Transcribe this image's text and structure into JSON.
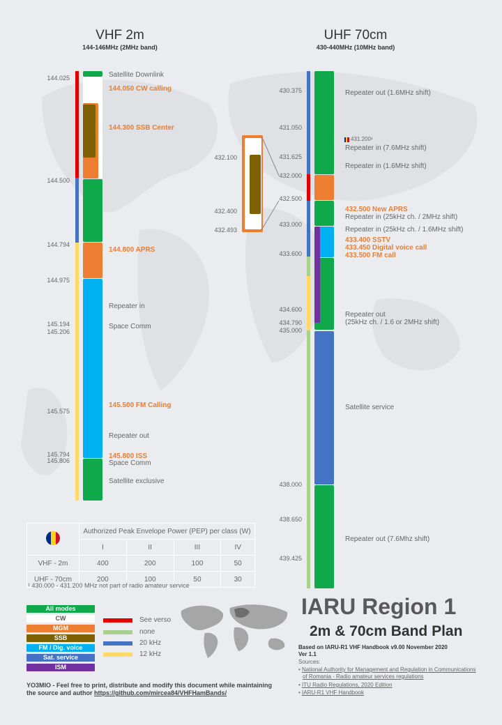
{
  "colors": {
    "all_modes": "#0fa84b",
    "cw": "#ffffff",
    "mgm": "#ed7d31",
    "ssb": "#7f6000",
    "fm_dig": "#00b0f0",
    "sat": "#4472c4",
    "ism": "#7030a0",
    "see_verso": "#e00000",
    "none": "#a9d18e",
    "khz20": "#4472c4",
    "khz12": "#ffd966"
  },
  "vhf": {
    "title": "VHF 2m",
    "subtitle": "144-146MHz (2MHz band)",
    "freqs": [
      "144.025",
      "144.500",
      "144.794",
      "144.975",
      "145.194",
      "145.206",
      "145.575",
      "145.794",
      "145.806"
    ],
    "labels": {
      "sat_down": "Satellite Downlink",
      "cw_call": "144.050 CW calling",
      "ssb_center": "144.300 SSB Center",
      "aprs": "144.800 APRS",
      "rep_in": "Repeater in",
      "space1": "Space Comm",
      "fm_call": "145.500 FM Calling",
      "rep_out": "Repeater out",
      "iss": "145.800 ISS",
      "space2": "Space Comm",
      "sat_excl": "Satellite exclusive"
    }
  },
  "uhf": {
    "title": "UHF 70cm",
    "subtitle": "430-440MHz (10MHz band)",
    "freqs": [
      "430.375",
      "431.050",
      "431.625",
      "432.000",
      "432.500",
      "433.000",
      "433.600",
      "434.600",
      "434.790",
      "435.000",
      "438.000",
      "438.650",
      "439.425"
    ],
    "zoom_freqs": [
      "432.100",
      "432.400",
      "432.493"
    ],
    "labels": {
      "rep_out16": "Repeater out (1.6MHz shift)",
      "f4312": "431.200¹",
      "rep_in76": "Repeater in (7.6MHz shift)",
      "rep_in16": "Repeater in (1.6MHz shift)",
      "new_aprs": "432.500 New APRS",
      "rep_in25_2": "Repeater in (25kHz ch. / 2MHz shift)",
      "rep_in25_16": "Repeater in (25kHz ch. / 1.6MHz shift)",
      "sstv": "433.400 SSTV",
      "dvc": "433.450 Digital voice call",
      "fmcall": "433.500 FM call",
      "rep_out25": "Repeater out",
      "rep_out25b": "(25kHz ch. / 1.6 or 2MHz shift)",
      "sat_service": "Satellite service",
      "rep_out76": "Repeater out (7.6Mhz shift)"
    }
  },
  "pep_table": {
    "header": "Authorized Peak Envelope Power (PEP) per class (W)",
    "classes": [
      "I",
      "II",
      "III",
      "IV"
    ],
    "rows": [
      {
        "band": "VHF - 2m",
        "values": [
          "400",
          "200",
          "100",
          "50"
        ]
      },
      {
        "band": "UHF - 70cm",
        "values": [
          "200",
          "100",
          "50",
          "30"
        ]
      }
    ],
    "footnote": "¹ 430.000 - 431.200 MHz not part of radio amateur service"
  },
  "legend": {
    "modes": [
      "All modes",
      "CW",
      "MGM",
      "SSB",
      "FM / Dig. voice",
      "Sat. service",
      "ISM"
    ],
    "lines": [
      "See verso",
      "none",
      "20 kHz",
      "12 kHz"
    ]
  },
  "footer": {
    "license_line1": "YO3MIO - Feel free to print, distribute and modify this document while maintaining",
    "license_line2": "the source and author",
    "license_link": "https://github.com/mircea84/VHFHamBands/",
    "title": "IARU Region 1",
    "subtitle": "2m & 70cm Band Plan",
    "based_on": "Based on IARU-R1  VHF Handbook  v9.00  November  2020",
    "version": "Ver 1.1",
    "sources_label": "Sources:",
    "source1a": "National Authority for Management and Regulation in Communications",
    "source1b": "of Romania - Radio amateur services regulations",
    "source2": "ITU Radio Regulations, 2020 Edition",
    "source3": "IARU-R1 VHF Handbook"
  }
}
